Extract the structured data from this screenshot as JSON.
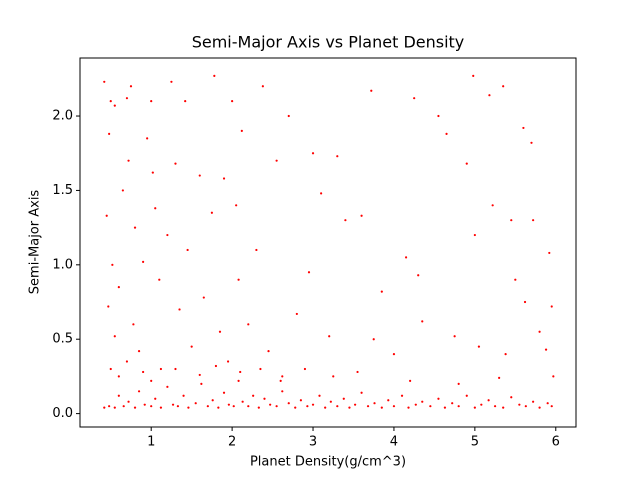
{
  "chart_data": {
    "type": "scatter",
    "title": "Semi-Major Axis vs Planet Density",
    "xlabel": "Planet Density(g/cm^3)",
    "ylabel": "Semi-Major Axis",
    "xlim": [
      0.12,
      6.25
    ],
    "ylim": [
      -0.09,
      2.39
    ],
    "xticks": [
      1,
      2,
      3,
      4,
      5,
      6
    ],
    "yticks": [
      {
        "value": 0,
        "label": "0.0"
      },
      0.5,
      {
        "value": 1,
        "label": "1.0"
      },
      1.5,
      {
        "value": 2,
        "label": "2.0"
      }
    ],
    "series": [
      {
        "color": "#ff0000",
        "x": [
          0.42,
          0.48,
          0.55,
          0.6,
          0.66,
          0.72,
          0.8,
          0.85,
          0.92,
          1.0,
          1.05,
          1.12,
          1.2,
          1.27,
          1.33,
          1.4,
          1.46,
          1.55,
          1.62,
          1.7,
          1.76,
          1.83,
          1.9,
          1.96,
          2.02,
          2.08,
          2.13,
          2.2,
          2.26,
          2.33,
          2.4,
          2.47,
          2.55,
          2.62,
          2.7,
          2.78,
          2.85,
          2.93,
          3.0,
          3.08,
          3.15,
          3.22,
          3.3,
          3.38,
          3.45,
          3.52,
          3.6,
          3.68,
          3.76,
          3.85,
          3.93,
          4.0,
          4.1,
          4.18,
          4.27,
          4.35,
          4.45,
          4.55,
          4.63,
          4.72,
          4.8,
          4.9,
          5.0,
          5.08,
          5.17,
          5.25,
          5.35,
          5.45,
          5.55,
          5.63,
          5.72,
          5.8,
          5.9,
          5.95,
          0.42,
          0.5,
          0.55,
          0.48,
          0.45,
          0.52,
          0.47,
          0.55,
          0.6,
          0.65,
          0.7,
          0.75,
          0.72,
          0.8,
          0.78,
          0.85,
          0.9,
          0.95,
          1.0,
          1.02,
          1.05,
          1.1,
          1.12,
          1.2,
          1.25,
          1.3,
          1.35,
          1.42,
          1.45,
          1.5,
          1.6,
          1.65,
          1.75,
          1.78,
          1.85,
          1.9,
          1.95,
          2.0,
          2.05,
          2.08,
          2.12,
          2.2,
          2.3,
          2.38,
          2.45,
          2.55,
          2.62,
          2.7,
          2.8,
          2.95,
          3.0,
          3.1,
          3.2,
          3.3,
          3.4,
          3.6,
          3.72,
          3.75,
          3.85,
          4.0,
          4.15,
          4.25,
          4.3,
          4.35,
          4.55,
          4.65,
          4.75,
          4.9,
          4.98,
          5.0,
          5.05,
          5.18,
          5.22,
          5.35,
          5.38,
          5.45,
          5.5,
          5.6,
          5.62,
          5.7,
          5.72,
          5.8,
          5.88,
          5.92,
          5.95,
          5.97,
          0.5,
          0.6,
          0.7,
          0.9,
          1.0,
          1.3,
          1.6,
          1.8,
          2.1,
          2.35,
          2.6,
          2.9,
          3.25,
          3.55,
          4.2,
          4.8,
          5.3
        ],
        "values": [
          0.04,
          0.05,
          0.04,
          0.12,
          0.05,
          0.08,
          0.04,
          0.15,
          0.06,
          0.05,
          0.1,
          0.04,
          0.18,
          0.06,
          0.05,
          0.12,
          0.04,
          0.07,
          0.2,
          0.05,
          0.09,
          0.04,
          0.14,
          0.06,
          0.05,
          0.22,
          0.08,
          0.05,
          0.12,
          0.04,
          0.1,
          0.06,
          0.05,
          0.15,
          0.07,
          0.04,
          0.09,
          0.05,
          0.06,
          0.12,
          0.04,
          0.08,
          0.05,
          0.1,
          0.04,
          0.06,
          0.14,
          0.05,
          0.07,
          0.04,
          0.09,
          0.05,
          0.12,
          0.04,
          0.06,
          0.08,
          0.05,
          0.1,
          0.04,
          0.07,
          0.05,
          0.12,
          0.04,
          0.06,
          0.09,
          0.05,
          0.04,
          0.11,
          0.06,
          0.05,
          0.08,
          0.04,
          0.07,
          0.05,
          2.23,
          2.1,
          2.07,
          1.88,
          1.33,
          1.0,
          0.72,
          0.52,
          0.85,
          1.5,
          2.12,
          2.2,
          1.7,
          1.25,
          0.6,
          0.42,
          1.02,
          1.85,
          2.1,
          1.62,
          1.38,
          0.9,
          0.3,
          1.2,
          2.23,
          1.68,
          0.7,
          2.1,
          1.1,
          0.45,
          1.6,
          0.78,
          1.35,
          2.27,
          0.55,
          1.58,
          0.35,
          2.1,
          1.4,
          0.9,
          1.9,
          0.6,
          1.1,
          2.2,
          0.42,
          1.7,
          0.25,
          2.0,
          0.67,
          0.95,
          1.75,
          1.48,
          0.52,
          1.73,
          1.3,
          1.33,
          2.17,
          0.5,
          0.82,
          0.4,
          1.05,
          2.12,
          0.93,
          0.62,
          2.0,
          1.88,
          0.52,
          1.68,
          2.27,
          1.2,
          0.45,
          2.14,
          1.4,
          2.2,
          0.4,
          1.3,
          0.9,
          1.92,
          0.75,
          1.82,
          1.3,
          0.55,
          0.43,
          1.08,
          0.72,
          0.25,
          0.3,
          0.25,
          0.35,
          0.28,
          0.22,
          0.3,
          0.26,
          0.32,
          0.28,
          0.3,
          0.22,
          0.3,
          0.25,
          0.28,
          0.22,
          0.2,
          0.24
        ]
      }
    ]
  }
}
